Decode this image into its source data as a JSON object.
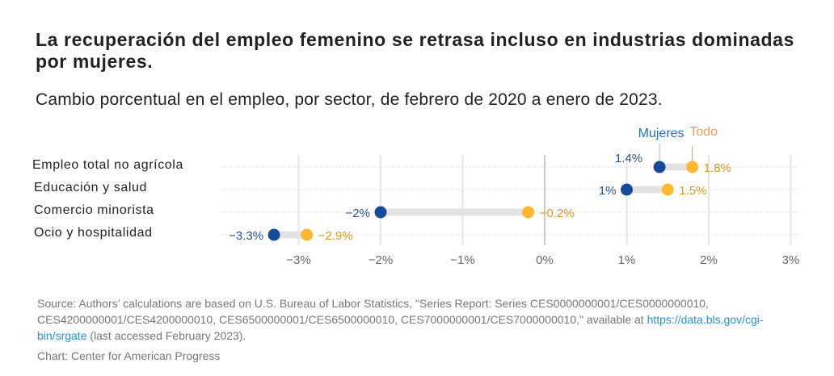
{
  "title": "La recuperación del empleo femenino se retrasa incluso en industrias dominadas por mujeres.",
  "subtitle": "Cambio porcentual en el empleo, por sector, de febrero de 2020 a enero de 2023.",
  "chart_data": {
    "type": "dumbbell",
    "categories": [
      "Empleo total no agrícola",
      "Educación y salud",
      "Comercio minorista",
      "Ocio y hospitalidad"
    ],
    "series": [
      {
        "name": "Mujeres",
        "values": [
          1.4,
          1,
          -2,
          -3.3
        ],
        "labels": [
          "1.4%",
          "1%",
          "−2%",
          "−3.3%"
        ],
        "color": "#174a98"
      },
      {
        "name": "Todo",
        "values": [
          1.8,
          1.5,
          -0.2,
          -2.9
        ],
        "labels": [
          "1.8%",
          "1.5%",
          "−0.2%",
          "−2.9%"
        ],
        "color": "#ffb830"
      }
    ],
    "xticks": [
      -3,
      -2,
      -1,
      0,
      1,
      2,
      3
    ],
    "xtick_labels": [
      "−3%",
      "−2%",
      "−1%",
      "0%",
      "1%",
      "2%",
      "3%"
    ],
    "xlim": [
      -3.6,
      3.1
    ],
    "grid": true
  },
  "source": {
    "prefix": "Source: Authors’ calculations are based on U.S. Bureau of Labor Statistics, \"Series Report: Series CES0000000001/CES0000000010, CES4200000001/CES4200000010, CES6500000001/CES6500000010, CES7000000001/CES7000000010,\" available at ",
    "link": "https://data.bls.gov/cgi-bin/srgate",
    "suffix": " (last accessed February 2023)."
  },
  "credit": "Chart: Center for American Progress"
}
